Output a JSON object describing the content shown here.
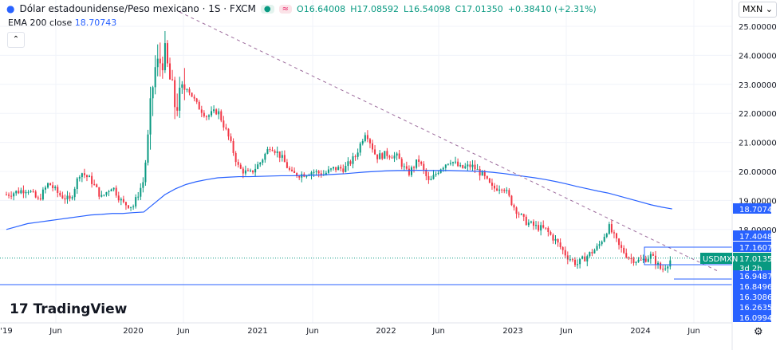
{
  "header": {
    "title": "Dólar estadounidense/Peso mexicano · 1S · FXCM",
    "open": "O16.64008",
    "high": "H17.08592",
    "low": "L16.54098",
    "close": "C17.01350",
    "change": "+0.38410 (+2.31%)",
    "status_icons": [
      "market-open-dot",
      "delayed-icon"
    ]
  },
  "indicator": {
    "name": "EMA 200 close",
    "value": "18.70743"
  },
  "currency_select": "MXN",
  "logo": "TradingView",
  "symbol_tag": "USDMXN",
  "countdown": "3d 2h",
  "colors": {
    "up": "#089981",
    "down": "#f23645",
    "ema": "#2962ff",
    "label": "#2962ff",
    "current": "#089981"
  },
  "chart_data": {
    "type": "candlestick",
    "interval": "weekly",
    "x_ticks": [
      "'19",
      "Jun",
      "2020",
      "Jun",
      "2021",
      "Jun",
      "2022",
      "Jun",
      "2023",
      "Jun",
      "2024",
      "Jun"
    ],
    "y_ticks": [
      "25.00000",
      "24.00000",
      "23.00000",
      "22.00000",
      "21.00000",
      "20.00000",
      "19.00000",
      "18.00000"
    ],
    "ylim": [
      16.0,
      25.5
    ],
    "monthly_closes_from_2019_01": [
      19.2,
      19.3,
      19.4,
      19.0,
      19.6,
      19.2,
      19.0,
      20.0,
      19.7,
      19.1,
      19.5,
      18.9,
      18.8,
      19.7,
      23.5,
      24.0,
      22.2,
      23.0,
      22.3,
      21.9,
      22.1,
      21.2,
      20.1,
      19.9,
      20.3,
      20.9,
      20.5,
      19.9,
      19.9,
      20.0,
      19.9,
      20.1,
      20.1,
      20.5,
      21.4,
      20.5,
      20.6,
      20.5,
      19.9,
      20.4,
      19.6,
      20.1,
      20.4,
      20.1,
      20.2,
      19.9,
      19.4,
      19.5,
      18.8,
      18.3,
      18.1,
      18.0,
      17.6,
      17.1,
      16.8,
      17.1,
      17.4,
      18.1,
      17.4,
      17.0,
      16.9,
      17.1,
      16.6,
      17.0135
    ],
    "ema200_monthly": [
      18.0,
      18.1,
      18.2,
      18.25,
      18.3,
      18.35,
      18.4,
      18.45,
      18.5,
      18.52,
      18.55,
      18.55,
      18.58,
      18.6,
      18.9,
      19.2,
      19.4,
      19.55,
      19.65,
      19.72,
      19.78,
      19.8,
      19.82,
      19.82,
      19.83,
      19.84,
      19.85,
      19.85,
      19.86,
      19.87,
      19.88,
      19.9,
      19.92,
      19.95,
      19.98,
      20.0,
      20.02,
      20.03,
      20.03,
      20.04,
      20.03,
      20.03,
      20.03,
      20.02,
      20.01,
      20.0,
      19.97,
      19.93,
      19.88,
      19.83,
      19.78,
      19.72,
      19.65,
      19.57,
      19.48,
      19.4,
      19.32,
      19.25,
      19.15,
      19.05,
      18.95,
      18.85,
      18.77,
      18.70743
    ],
    "price_labels": [
      "18.70743",
      "17.40480",
      "17.16078",
      "17.01350",
      "16.94878",
      "16.84960",
      "16.30861",
      "16.26353",
      "16.09940"
    ],
    "last_price": 17.0135
  }
}
